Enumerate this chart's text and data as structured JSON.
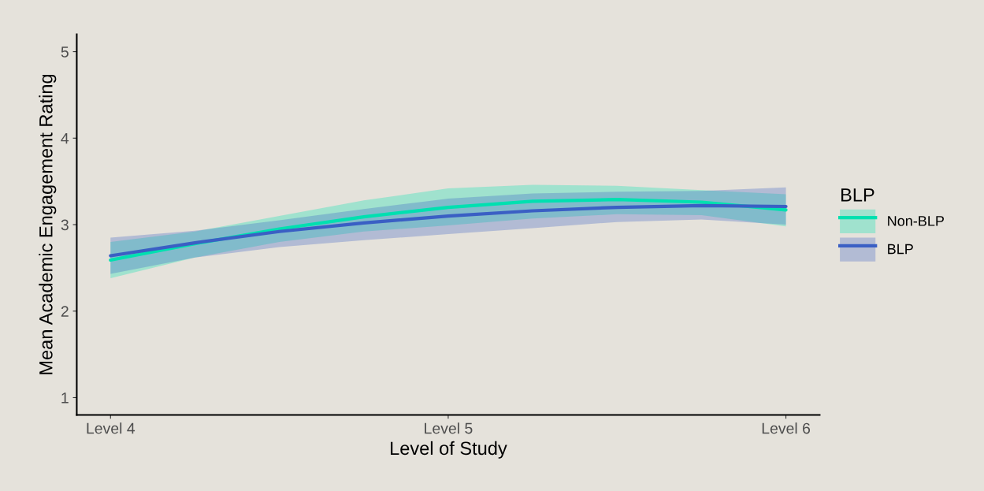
{
  "chart_data": {
    "type": "line",
    "xlabel": "Level of Study",
    "ylabel": "Mean Academic Engagement Rating",
    "legend_title": "BLP",
    "categories": [
      "Level 4",
      null,
      null,
      null,
      "Level 5",
      null,
      null,
      null,
      "Level 6"
    ],
    "ylim": [
      0.8,
      5.2
    ],
    "yticks": [
      1,
      2,
      3,
      4,
      5
    ],
    "series": [
      {
        "name": "Non-BLP",
        "color": "#00e0b0",
        "values": [
          2.59,
          2.78,
          2.95,
          3.09,
          3.2,
          3.27,
          3.29,
          3.26,
          3.17
        ],
        "lower": [
          2.38,
          2.62,
          2.8,
          2.92,
          2.99,
          3.07,
          3.12,
          3.11,
          2.98
        ],
        "upper": [
          2.8,
          2.92,
          3.1,
          3.28,
          3.42,
          3.46,
          3.45,
          3.4,
          3.35
        ]
      },
      {
        "name": "BLP",
        "color": "#3a5fc4",
        "values": [
          2.64,
          2.79,
          2.92,
          3.02,
          3.1,
          3.16,
          3.2,
          3.22,
          3.21
        ],
        "lower": [
          2.43,
          2.62,
          2.74,
          2.82,
          2.89,
          2.96,
          3.03,
          3.06,
          3.0
        ],
        "upper": [
          2.85,
          2.93,
          3.05,
          3.18,
          3.3,
          3.36,
          3.38,
          3.39,
          3.43
        ]
      }
    ],
    "grid": false,
    "legend": "right",
    "marker": "none",
    "line_style": "solid"
  }
}
